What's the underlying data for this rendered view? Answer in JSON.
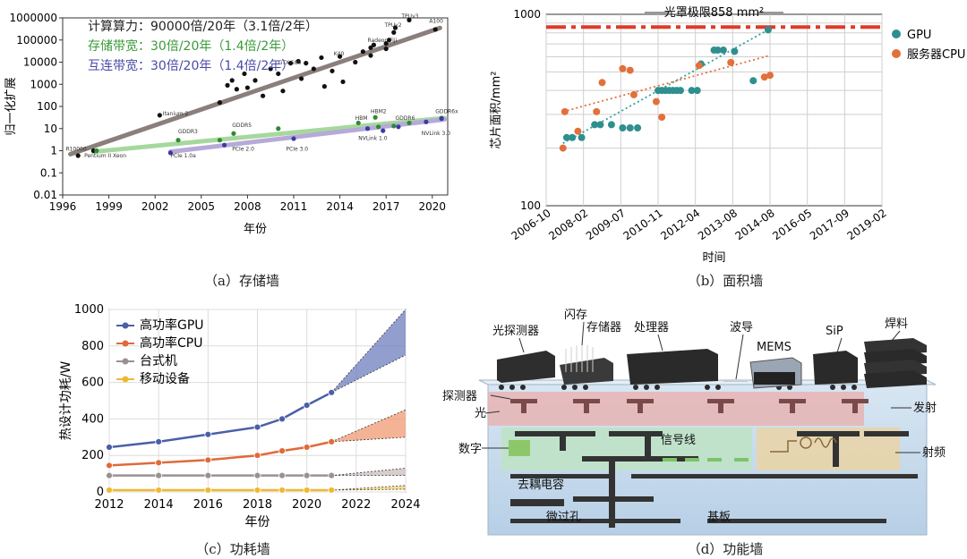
{
  "chart_data": [
    {
      "id": "a",
      "type": "scatter",
      "caption": "（a）存储墙",
      "xlabel": "年份",
      "ylabel": "归一化扩展",
      "yscale": "log",
      "xlim": [
        1996,
        2021
      ],
      "ylim": [
        0.01,
        1000000
      ],
      "xticks": [
        "1996",
        "1999",
        "2002",
        "2005",
        "2008",
        "2011",
        "2014",
        "2017",
        "2020"
      ],
      "yticks": [
        "0.01",
        "0.1",
        "1",
        "10",
        "100",
        "1000",
        "10000",
        "100000",
        "1000000"
      ],
      "annotations": [
        {
          "text": "计算算力：90000倍/20年（3.1倍/2年）",
          "color": "#222222"
        },
        {
          "text": "存储带宽：30倍/20年（1.4倍/2年）",
          "color": "#3a9a3a"
        },
        {
          "text": "互连带宽：30倍/20年（1.4倍/2年）",
          "color": "#4a4aa8"
        }
      ],
      "point_labels": [
        {
          "text": "R10000",
          "x": 1996.2,
          "y": 1
        },
        {
          "text": "Pentium II Xeon",
          "x": 1997.4,
          "y": 0.5
        },
        {
          "text": "Itanium 2",
          "x": 2002.5,
          "y": 40
        },
        {
          "text": "GTX 580",
          "x": 2010,
          "y": 8000
        },
        {
          "text": "K40",
          "x": 2013.6,
          "y": 20000
        },
        {
          "text": "Radeon Fiji",
          "x": 2015.8,
          "y": 80000
        },
        {
          "text": "TPUv2",
          "x": 2016.9,
          "y": 400000
        },
        {
          "text": "TPUv3",
          "x": 2018,
          "y": 1000000
        },
        {
          "text": "A100",
          "x": 2019.8,
          "y": 600000
        },
        {
          "text": "GDDR3",
          "x": 2003.5,
          "y": 6
        },
        {
          "text": "GDDR5",
          "x": 2007,
          "y": 12
        },
        {
          "text": "HBM",
          "x": 2015,
          "y": 25
        },
        {
          "text": "HBM2",
          "x": 2016,
          "y": 50
        },
        {
          "text": "GDDR6",
          "x": 2017.6,
          "y": 25
        },
        {
          "text": "GDDR6x",
          "x": 2020.2,
          "y": 50
        },
        {
          "text": "PCIe 1.0a",
          "x": 2003,
          "y": 0.5
        },
        {
          "text": "PCIe 2.0",
          "x": 2007,
          "y": 1
        },
        {
          "text": "PCIe 3.0",
          "x": 2010.5,
          "y": 1
        },
        {
          "text": "NVLink 1.0",
          "x": 2015.2,
          "y": 3
        },
        {
          "text": "NVLink 3.0",
          "x": 2019.3,
          "y": 5
        }
      ],
      "series": [
        {
          "name": "计算算力",
          "color": "#111111",
          "points": [
            [
              1997,
              0.6
            ],
            [
              1998,
              1
            ],
            [
              2002.3,
              40
            ],
            [
              2006.2,
              150
            ],
            [
              2006.7,
              900
            ],
            [
              2007,
              1500
            ],
            [
              2007.3,
              600
            ],
            [
              2007.8,
              3000
            ],
            [
              2008,
              700
            ],
            [
              2008.5,
              1500
            ],
            [
              2009,
              300
            ],
            [
              2009.5,
              5000
            ],
            [
              2010,
              3000
            ],
            [
              2010.3,
              500
            ],
            [
              2010.8,
              9000
            ],
            [
              2011.3,
              11000
            ],
            [
              2011.5,
              1800
            ],
            [
              2011.8,
              9000
            ],
            [
              2012.3,
              5000
            ],
            [
              2012.8,
              16000
            ],
            [
              2013,
              800
            ],
            [
              2013.5,
              4000
            ],
            [
              2014,
              18000
            ],
            [
              2014.2,
              1300
            ],
            [
              2015,
              10000
            ],
            [
              2015.5,
              30000
            ],
            [
              2016,
              20000
            ],
            [
              2016,
              45000
            ],
            [
              2016.2,
              60000
            ],
            [
              2017,
              40000
            ],
            [
              2017,
              70000
            ],
            [
              2017.2,
              100000
            ],
            [
              2017.5,
              220000
            ],
            [
              2017.6,
              360000
            ],
            [
              2018.5,
              800000
            ],
            [
              2020.2,
              300000
            ]
          ]
        },
        {
          "name": "存储带宽",
          "color": "#2e8b2e",
          "points": [
            [
              1998.2,
              1
            ],
            [
              2003.5,
              3
            ],
            [
              2006.2,
              3
            ],
            [
              2007.1,
              6
            ],
            [
              2010,
              10
            ],
            [
              2015.2,
              18
            ],
            [
              2016.3,
              32
            ],
            [
              2016.5,
              12
            ],
            [
              2017.5,
              13
            ],
            [
              2018.5,
              18
            ],
            [
              2020.6,
              30
            ]
          ]
        },
        {
          "name": "互连带宽",
          "color": "#3a3aa8",
          "points": [
            [
              2003,
              0.8
            ],
            [
              2006.5,
              1.8
            ],
            [
              2011,
              3.5
            ],
            [
              2015.8,
              10
            ],
            [
              2016.8,
              8
            ],
            [
              2017.8,
              12
            ],
            [
              2019.6,
              20
            ],
            [
              2020.6,
              28
            ]
          ]
        }
      ],
      "trend_lines": [
        {
          "name": "计算算力",
          "color": "#8a7f7a",
          "from": [
            1996.5,
            0.7
          ],
          "to": [
            2020.5,
            350000
          ]
        },
        {
          "name": "存储带宽",
          "color": "#a6d89e",
          "from": [
            1998,
            0.9
          ],
          "to": [
            2020.8,
            30
          ]
        },
        {
          "name": "互连带宽",
          "color": "#b7a9d8",
          "from": [
            2003,
            0.9
          ],
          "to": [
            2020.8,
            26
          ]
        }
      ]
    },
    {
      "id": "b",
      "type": "scatter",
      "caption": "（b）面积墙",
      "xlabel": "时间",
      "ylabel": "芯片面积/mm²",
      "yscale": "log",
      "ylim": [
        100,
        1000
      ],
      "xticks": [
        "2006-10",
        "2008-02",
        "2009-07",
        "2010-11",
        "2012-04",
        "2013-08",
        "2014-08",
        "2016-05",
        "2017-09",
        "2019-02"
      ],
      "ytick_labels": [
        "100",
        "1000"
      ],
      "limit_line": {
        "label": "光罩极限858 mm²",
        "value": 858,
        "color": "#e03a2a"
      },
      "legend_position": "top-right",
      "series": [
        {
          "name": "GPU",
          "color": "#2f8f8f",
          "points": [
            [
              0.55,
              227
            ],
            [
              0.7,
              227
            ],
            [
              0.95,
              227
            ],
            [
              1.3,
              265
            ],
            [
              1.45,
              265
            ],
            [
              1.75,
              265
            ],
            [
              2.05,
              255
            ],
            [
              2.25,
              255
            ],
            [
              2.45,
              255
            ],
            [
              3.0,
              400
            ],
            [
              3.1,
              400
            ],
            [
              3.2,
              400
            ],
            [
              3.3,
              400
            ],
            [
              3.4,
              400
            ],
            [
              3.5,
              400
            ],
            [
              3.6,
              400
            ],
            [
              3.9,
              400
            ],
            [
              4.05,
              400
            ],
            [
              4.15,
              550
            ],
            [
              4.5,
              650
            ],
            [
              4.6,
              650
            ],
            [
              4.75,
              650
            ],
            [
              5.05,
              640
            ],
            [
              5.55,
              450
            ],
            [
              5.95,
              830
            ]
          ]
        },
        {
          "name": "服务器CPU",
          "color": "#e2703a",
          "points": [
            [
              0.45,
              200
            ],
            [
              0.5,
              310
            ],
            [
              0.85,
              245
            ],
            [
              1.35,
              310
            ],
            [
              1.5,
              440
            ],
            [
              2.05,
              520
            ],
            [
              2.25,
              510
            ],
            [
              2.35,
              380
            ],
            [
              2.95,
              350
            ],
            [
              3.1,
              290
            ],
            [
              4.1,
              540
            ],
            [
              4.95,
              560
            ],
            [
              5.85,
              470
            ],
            [
              6.0,
              480
            ]
          ]
        }
      ],
      "trend_lines": [
        {
          "name": "GPU",
          "color": "#2f9f9f",
          "from": [
            0.45,
            212
          ],
          "to": [
            6.0,
            840
          ]
        },
        {
          "name": "服务器CPU",
          "color": "#e2703a",
          "from": [
            0.45,
            310
          ],
          "to": [
            6.0,
            610
          ]
        }
      ]
    },
    {
      "id": "c",
      "type": "line",
      "caption": "（c）功耗墙",
      "xlabel": "年份",
      "ylabel": "热设计功耗/W",
      "xlim": [
        2012,
        2024
      ],
      "ylim": [
        0,
        1000
      ],
      "xticks": [
        "2012",
        "2014",
        "2016",
        "2018",
        "2020",
        "2022",
        "2024"
      ],
      "yticks": [
        "0",
        "200",
        "400",
        "600",
        "800",
        "1000"
      ],
      "legend_position": "top-left",
      "series": [
        {
          "name": "高功率GPU",
          "color": "#4a5fa8",
          "x": [
            2012,
            2014,
            2016,
            2018,
            2019,
            2020,
            2021
          ],
          "values": [
            245,
            275,
            315,
            355,
            400,
            475,
            545
          ],
          "projection": {
            "x": [
              2021,
              2024
            ],
            "low": [
              545,
              750
            ],
            "high": [
              545,
              1000
            ],
            "fill": "#6d7dbd"
          }
        },
        {
          "name": "高功率CPU",
          "color": "#e06a3a",
          "x": [
            2012,
            2014,
            2016,
            2018,
            2019,
            2020,
            2021
          ],
          "values": [
            145,
            160,
            175,
            200,
            225,
            245,
            275
          ],
          "projection": {
            "x": [
              2021,
              2024
            ],
            "low": [
              275,
              300
            ],
            "high": [
              275,
              450
            ],
            "fill": "#f09a70"
          }
        },
        {
          "name": "台式机",
          "color": "#9a9090",
          "x": [
            2012,
            2014,
            2016,
            2018,
            2019,
            2020,
            2021
          ],
          "values": [
            90,
            90,
            90,
            90,
            90,
            90,
            90
          ],
          "projection": {
            "x": [
              2021,
              2024
            ],
            "low": [
              90,
              90
            ],
            "high": [
              90,
              130
            ],
            "fill": "#c8bcbc"
          }
        },
        {
          "name": "移动设备",
          "color": "#f0b830",
          "x": [
            2012,
            2014,
            2016,
            2018,
            2019,
            2020,
            2021
          ],
          "values": [
            10,
            10,
            10,
            10,
            10,
            10,
            10
          ],
          "projection": {
            "x": [
              2021,
              2024
            ],
            "low": [
              10,
              15
            ],
            "high": [
              10,
              35
            ],
            "fill": "#f6d070"
          }
        }
      ]
    }
  ],
  "panel_d": {
    "caption": "（d）功能墙",
    "labels": {
      "photodetector": "光探测器",
      "flash": "闪存",
      "memory": "存储器",
      "processor": "处理器",
      "waveguide": "波导",
      "mems": "MEMS",
      "sip": "SiP",
      "solder": "焊料",
      "detector": "探测器",
      "light": "光",
      "emit": "发射",
      "digital": "数字",
      "signal_line": "信号线",
      "rf": "射频",
      "decoupling_cap": "去耦电容",
      "micro_via": "微过孔",
      "substrate": "基板"
    }
  }
}
